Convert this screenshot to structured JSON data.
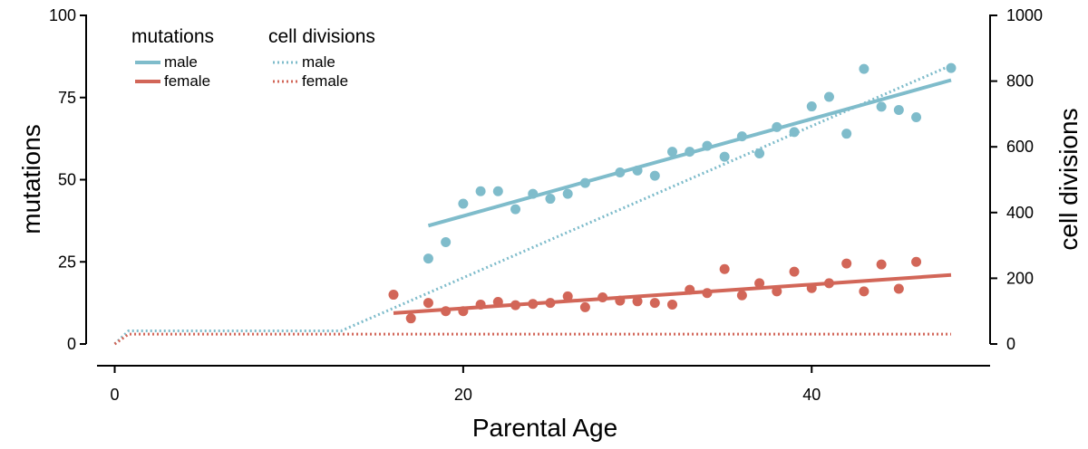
{
  "chart_data": {
    "type": "scatter",
    "xlabel": "Parental Age",
    "ylabel_left": "mutations",
    "ylabel_right": "cell divisions",
    "xlim": [
      -1,
      49
    ],
    "ylim_left": [
      0,
      100
    ],
    "ylim_right": [
      0,
      1000
    ],
    "x_ticks": [
      0,
      20,
      40
    ],
    "x_tick_labels": [
      "0",
      "20",
      "40"
    ],
    "y_left_ticks": [
      0,
      25,
      50,
      75,
      100
    ],
    "y_left_tick_labels": [
      "0",
      "25",
      "50",
      "75",
      "100"
    ],
    "y_right_ticks": [
      0,
      200,
      400,
      600,
      800,
      1000
    ],
    "y_right_tick_labels": [
      "0",
      "200",
      "400",
      "600",
      "800",
      "1000"
    ],
    "colors": {
      "male": "#7fbccb",
      "female": "#d26658"
    },
    "legend": {
      "mutations_title": "mutations",
      "cell_divisions_title": "cell divisions",
      "mutations_entries": [
        "male",
        "female"
      ],
      "cell_divisions_entries": [
        "male",
        "female"
      ]
    },
    "series": [
      {
        "name": "male mutations",
        "kind": "points",
        "color_key": "male",
        "x": [
          18,
          19,
          20,
          21,
          22,
          23,
          24,
          25,
          26,
          27,
          29,
          30,
          31,
          32,
          33,
          34,
          35,
          36,
          37,
          38,
          39,
          40,
          41,
          42,
          43,
          44,
          45,
          46,
          48
        ],
        "y": [
          26,
          31,
          42.7,
          46.5,
          46.5,
          41,
          45.7,
          44.2,
          45.7,
          49,
          52.2,
          52.8,
          51.2,
          58.5,
          58.5,
          60.3,
          57,
          63.2,
          58,
          66,
          64.5,
          72.3,
          75.2,
          64,
          83.7,
          72.2,
          71.2,
          69,
          84
        ]
      },
      {
        "name": "female mutations",
        "kind": "points",
        "color_key": "female",
        "x": [
          16,
          17,
          18,
          19,
          20,
          21,
          22,
          23,
          24,
          25,
          26,
          27,
          28,
          29,
          30,
          31,
          32,
          33,
          34,
          35,
          36,
          37,
          38,
          39,
          40,
          41,
          42,
          43,
          44,
          45,
          46
        ],
        "y": [
          15,
          7.8,
          12.5,
          10,
          10,
          12,
          12.8,
          11.8,
          12.2,
          12.5,
          14.5,
          11.2,
          14.2,
          13.2,
          13,
          12.5,
          12,
          16.5,
          15.5,
          22.8,
          14.8,
          18.5,
          16,
          22,
          17,
          18.5,
          24.5,
          16,
          24.2,
          16.8,
          25
        ]
      },
      {
        "name": "male mutations fit",
        "kind": "fit-line",
        "color_key": "male",
        "x": [
          18,
          48
        ],
        "y": [
          36,
          80.3
        ]
      },
      {
        "name": "female mutations fit",
        "kind": "fit-line",
        "color_key": "female",
        "x": [
          16,
          48
        ],
        "y": [
          9.4,
          21
        ]
      },
      {
        "name": "male cell divisions",
        "kind": "dotted-line",
        "axis": "right",
        "color_key": "male",
        "x": [
          0,
          0.8,
          13,
          48
        ],
        "y": [
          0,
          40,
          40,
          848
        ]
      },
      {
        "name": "female cell divisions",
        "kind": "dotted-line",
        "axis": "right",
        "color_key": "female",
        "x": [
          0,
          0.8,
          48
        ],
        "y": [
          0,
          30,
          30
        ]
      }
    ]
  }
}
